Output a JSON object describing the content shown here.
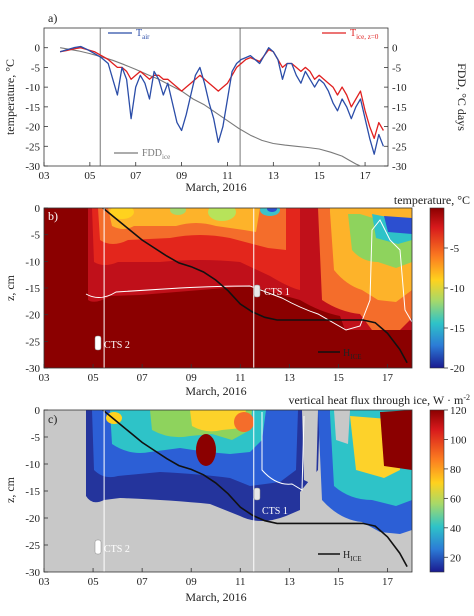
{
  "figure": {
    "colors": {
      "t_air": "#2b4da8",
      "t_ice": "#e02020",
      "fdd": "#7a7a7a",
      "h_ice": "#111111",
      "cts_line": "#ffffff",
      "no_data": "#c8c8c8",
      "background_warm": "#8b0000"
    }
  },
  "chart_data": [
    {
      "type": "line",
      "panel": "a)",
      "xlabel": "March, 2016",
      "ylabel": "temperature, °C",
      "ylabel_right": "FDD, °C days",
      "xlim": [
        3,
        18
      ],
      "ylim": [
        -30,
        5
      ],
      "ylim_right": [
        -30,
        5
      ],
      "x_ticks": [
        "03",
        "05",
        "07",
        "09",
        "11",
        "13",
        "15",
        "17"
      ],
      "y_ticks": [
        "0",
        "-5",
        "-10",
        "-15",
        "-20",
        "-25",
        "-30"
      ],
      "y_ticks_right": [
        "0",
        "-5",
        "-10",
        "-15",
        "-20",
        "-25",
        "-30"
      ],
      "legend": [
        {
          "label": "T",
          "sub": "air",
          "series": 0
        },
        {
          "label": "T",
          "sub": "ice, z=0",
          "series": 1
        },
        {
          "label": "FDD",
          "sub": "ice",
          "series": 2
        }
      ],
      "vlines": [
        5.45,
        11.55
      ],
      "series": [
        {
          "color_key": "t_air",
          "x": [
            3.7,
            4.0,
            4.3,
            4.6,
            4.9,
            5.2,
            5.5,
            5.8,
            6.0,
            6.2,
            6.4,
            6.6,
            6.8,
            7.0,
            7.2,
            7.4,
            7.6,
            7.8,
            8.0,
            8.2,
            8.4,
            8.6,
            8.8,
            9.0,
            9.2,
            9.4,
            9.6,
            9.8,
            10.0,
            10.2,
            10.4,
            10.6,
            10.8,
            11.0,
            11.2,
            11.4,
            11.6,
            11.8,
            12.0,
            12.2,
            12.4,
            12.6,
            12.8,
            13.0,
            13.2,
            13.4,
            13.6,
            13.8,
            14.0,
            14.2,
            14.4,
            14.6,
            14.8,
            15.0,
            15.2,
            15.4,
            15.6,
            15.8,
            16.0,
            16.2,
            16.4,
            16.6,
            16.8,
            17.0,
            17.2,
            17.4,
            17.6,
            17.8
          ],
          "y": [
            -1,
            -0.5,
            0,
            0.3,
            -0.5,
            -1.5,
            -2.5,
            -4,
            -8,
            -12,
            -5,
            -8,
            -18,
            -10,
            -7,
            -9,
            -13,
            -6,
            -8,
            -12,
            -9,
            -14,
            -19,
            -21,
            -17,
            -12,
            -7,
            -5,
            -9,
            -14,
            -18,
            -24,
            -20,
            -13,
            -6,
            -4,
            -3,
            -2.5,
            -2,
            -3,
            -4,
            -2,
            0,
            -1,
            -3,
            -8,
            -4,
            -4,
            -7,
            -9,
            -6,
            -8,
            -10,
            -8,
            -9,
            -11,
            -14,
            -16,
            -13,
            -15,
            -18,
            -15,
            -13,
            -18,
            -23,
            -27,
            -22,
            -25
          ]
        },
        {
          "color_key": "t_ice",
          "x": [
            3.7,
            4.0,
            4.3,
            4.6,
            4.9,
            5.2,
            5.5,
            5.8,
            6.0,
            6.2,
            6.4,
            6.6,
            6.8,
            7.0,
            7.2,
            7.4,
            7.6,
            7.8,
            8.0,
            8.2,
            8.4,
            8.6,
            8.8,
            9.0,
            9.2,
            9.4,
            9.6,
            9.8,
            10.0,
            10.2,
            10.4,
            10.6,
            10.8,
            11.0,
            11.2,
            11.4,
            11.6,
            11.8,
            12.0,
            12.2,
            12.4,
            12.6,
            12.8,
            13.0,
            13.2,
            13.4,
            13.6,
            13.8,
            14.0,
            14.2,
            14.4,
            14.6,
            14.8,
            15.0,
            15.2,
            15.4,
            15.6,
            15.8,
            16.0,
            16.2,
            16.4,
            16.6,
            16.8,
            17.0,
            17.2,
            17.4,
            17.6,
            17.8
          ],
          "y": [
            -1,
            -0.7,
            -0.3,
            0,
            -0.5,
            -1,
            -2,
            -3,
            -4,
            -5,
            -5,
            -6,
            -8,
            -7,
            -6,
            -7,
            -8,
            -7,
            -7,
            -8,
            -8,
            -9,
            -10,
            -11,
            -10,
            -9,
            -8,
            -7,
            -8,
            -9,
            -10,
            -11,
            -10,
            -9,
            -7,
            -5,
            -4,
            -3,
            -2.5,
            -3,
            -3.5,
            -2,
            -0.5,
            -1,
            -3,
            -5,
            -4,
            -4,
            -5,
            -6,
            -5,
            -6,
            -8,
            -7,
            -8,
            -9,
            -10,
            -12,
            -10,
            -12,
            -15,
            -13,
            -11,
            -16,
            -20,
            -23,
            -19,
            -21
          ]
        },
        {
          "color_key": "fdd",
          "x": [
            3.7,
            4.5,
            5.0,
            5.5,
            6.0,
            6.5,
            7.0,
            7.5,
            8.0,
            8.5,
            9.0,
            9.5,
            10.0,
            10.5,
            11.0,
            11.5,
            12.0,
            12.5,
            13.0,
            13.5,
            14.0,
            14.5,
            15.0,
            15.5,
            16.0,
            16.3,
            16.6,
            17.0,
            17.5,
            17.9
          ],
          "y": [
            0,
            -0.8,
            -1.5,
            -2.3,
            -3.2,
            -4.3,
            -5.5,
            -6.8,
            -8,
            -9.5,
            -11,
            -13,
            -14.5,
            -16.5,
            -18.5,
            -20.5,
            -22.2,
            -23.5,
            -24.3,
            -24.7,
            -25,
            -25.3,
            -25.7,
            -26.5,
            -27.5,
            -28.5,
            -29.5,
            -30.5,
            -31,
            -31.5
          ]
        }
      ]
    },
    {
      "type": "heatmap",
      "panel": "b)",
      "xlabel": "March, 2016",
      "ylabel": "z, cm",
      "xlim": [
        3,
        18
      ],
      "ylim": [
        -30,
        0
      ],
      "x_ticks": [
        "03",
        "05",
        "07",
        "09",
        "11",
        "13",
        "15",
        "17"
      ],
      "y_ticks": [
        "0",
        "-5",
        "-10",
        "-15",
        "-20",
        "-25",
        "-30"
      ],
      "colorbar_label": "temperature, °C",
      "colorbar_ticks": [
        "-5",
        "-10",
        "-15",
        "-20"
      ],
      "colorbar_range": [
        -20,
        0
      ],
      "labels": {
        "cts1": "CTS 1",
        "cts2": "CTS 2",
        "h_ice": "H",
        "h_ice_sub": "ICE"
      },
      "vlines": [
        5.45,
        11.55
      ],
      "h_ice": {
        "x": [
          5.4,
          5.8,
          6.2,
          6.6,
          7.0,
          7.5,
          8.0,
          8.5,
          9.0,
          9.5,
          10.0,
          10.5,
          11.0,
          11.5,
          12.0,
          12.5,
          13.0,
          13.5,
          14.0,
          15.0,
          16.0,
          16.5,
          17.0,
          17.5,
          17.8
        ],
        "y": [
          0,
          -1.5,
          -3,
          -4.5,
          -6,
          -7.5,
          -9,
          -10.3,
          -11,
          -12,
          -13.5,
          -15.5,
          -18,
          -19.5,
          -20.5,
          -21,
          -21,
          -21,
          -21,
          -21,
          -21,
          -21.5,
          -23.5,
          -26.5,
          -29
        ]
      }
    },
    {
      "type": "heatmap",
      "panel": "c)",
      "xlabel": "March, 2016",
      "ylabel": "z, cm",
      "xlim": [
        3,
        18
      ],
      "ylim": [
        -30,
        0
      ],
      "x_ticks": [
        "03",
        "05",
        "07",
        "09",
        "11",
        "13",
        "15",
        "17"
      ],
      "y_ticks": [
        "0",
        "-5",
        "-10",
        "-15",
        "-20",
        "-25",
        "-30"
      ],
      "colorbar_label": "vertical heat flux through ice, W · m",
      "colorbar_label_sup": "-2",
      "colorbar_ticks": [
        "120",
        "100",
        "80",
        "60",
        "40",
        "20"
      ],
      "colorbar_range": [
        10,
        120
      ],
      "labels": {
        "cts1": "CTS 1",
        "cts2": "CTS 2",
        "h_ice": "H",
        "h_ice_sub": "ICE"
      },
      "vlines": [
        5.45,
        11.55
      ],
      "h_ice": {
        "x": [
          5.4,
          5.8,
          6.2,
          6.6,
          7.0,
          7.5,
          8.0,
          8.5,
          9.0,
          9.5,
          10.0,
          10.5,
          11.0,
          11.5,
          12.0,
          12.5,
          13.0,
          13.5,
          14.0,
          15.0,
          16.0,
          16.5,
          17.0,
          17.5,
          17.8
        ],
        "y": [
          0,
          -1.5,
          -3,
          -4.5,
          -6,
          -7.5,
          -9,
          -10.3,
          -11,
          -12,
          -13.5,
          -15.5,
          -18,
          -19.5,
          -20.5,
          -21,
          -21,
          -21,
          -21,
          -21,
          -21,
          -21.5,
          -23.5,
          -26.5,
          -29
        ]
      }
    }
  ]
}
